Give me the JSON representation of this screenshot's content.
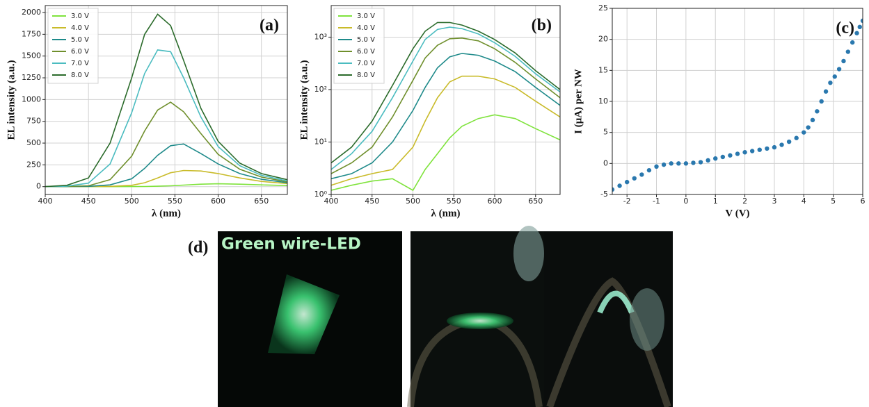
{
  "chart_data": [
    {
      "type": "line",
      "label": "(a)",
      "x_label": "λ (nm)",
      "y_label": "EL intensity (a.u.)",
      "x": [
        400,
        425,
        450,
        475,
        500,
        515,
        530,
        545,
        560,
        580,
        600,
        625,
        650,
        680
      ],
      "xlim": [
        400,
        680
      ],
      "xticks": [
        400,
        450,
        500,
        550,
        600,
        650
      ],
      "ylim": [
        -90,
        2080
      ],
      "yticks": [
        0,
        250,
        500,
        750,
        1000,
        1250,
        1500,
        1750,
        2000
      ],
      "grid": true,
      "legend": "upper left",
      "series": [
        {
          "name": "3.0 V",
          "color": "#7fe33c",
          "values": [
            0,
            0,
            0,
            0,
            1,
            2,
            5,
            10,
            18,
            28,
            33,
            28,
            20,
            12
          ]
        },
        {
          "name": "4.0 V",
          "color": "#c9bb2a",
          "values": [
            0,
            0,
            1,
            3,
            15,
            45,
            100,
            160,
            185,
            180,
            150,
            100,
            60,
            35
          ]
        },
        {
          "name": "5.0 V",
          "color": "#1e8a8a",
          "values": [
            0,
            1,
            3,
            20,
            90,
            210,
            360,
            470,
            490,
            380,
            260,
            150,
            85,
            45
          ]
        },
        {
          "name": "6.0 V",
          "color": "#6f8f2c",
          "values": [
            0,
            2,
            10,
            80,
            350,
            640,
            880,
            970,
            860,
            610,
            370,
            200,
            110,
            55
          ]
        },
        {
          "name": "7.0 V",
          "color": "#4bbcc0",
          "values": [
            0,
            5,
            40,
            260,
            850,
            1300,
            1570,
            1550,
            1250,
            800,
            460,
            240,
            130,
            65
          ]
        },
        {
          "name": "8.0 V",
          "color": "#2b6b2b",
          "values": [
            0,
            15,
            100,
            500,
            1250,
            1750,
            1980,
            1850,
            1450,
            900,
            520,
            270,
            150,
            80
          ]
        }
      ]
    },
    {
      "type": "line",
      "label": "(b)",
      "x_label": "λ (nm)",
      "y_label": "EL intensity (a.u.)",
      "x": [
        400,
        425,
        450,
        475,
        500,
        515,
        530,
        545,
        560,
        580,
        600,
        625,
        650,
        680
      ],
      "xlim": [
        400,
        680
      ],
      "xticks": [
        400,
        450,
        500,
        550,
        600,
        650
      ],
      "ylim": [
        1,
        4000
      ],
      "log_y": true,
      "yticks": [
        {
          "value": 1,
          "label": "10⁰"
        },
        {
          "value": 10,
          "label": "10¹"
        },
        {
          "value": 100,
          "label": "10²"
        },
        {
          "value": 1000,
          "label": "10³"
        }
      ],
      "grid": true,
      "legend": "upper left",
      "series": [
        {
          "name": "3.0 V",
          "color": "#7fe33c",
          "values": [
            1.2,
            1.5,
            1.8,
            2,
            1.2,
            3,
            6,
            12,
            20,
            28,
            33,
            28,
            18,
            11
          ]
        },
        {
          "name": "4.0 V",
          "color": "#c9bb2a",
          "values": [
            1.5,
            2,
            2.5,
            3,
            8,
            25,
            70,
            140,
            180,
            180,
            160,
            110,
            60,
            30
          ]
        },
        {
          "name": "5.0 V",
          "color": "#1e8a8a",
          "values": [
            2,
            2.5,
            4,
            10,
            40,
            110,
            260,
            420,
            490,
            450,
            350,
            220,
            110,
            50
          ]
        },
        {
          "name": "6.0 V",
          "color": "#6f8f2c",
          "values": [
            2.5,
            4,
            8,
            30,
            150,
            400,
            700,
            930,
            960,
            850,
            600,
            330,
            160,
            70
          ]
        },
        {
          "name": "7.0 V",
          "color": "#4bbcc0",
          "values": [
            3,
            6,
            16,
            70,
            350,
            900,
            1400,
            1550,
            1450,
            1150,
            780,
            430,
            200,
            90
          ]
        },
        {
          "name": "8.0 V",
          "color": "#2b6b2b",
          "values": [
            4,
            8,
            25,
            120,
            600,
            1300,
            1900,
            1900,
            1700,
            1300,
            900,
            500,
            230,
            100
          ]
        }
      ]
    },
    {
      "type": "scatter",
      "label": "(c)",
      "x_label": "V (V)",
      "y_label": "I (μA) per NW",
      "x": [
        -2.5,
        -2.25,
        -2,
        -1.75,
        -1.5,
        -1.25,
        -1,
        -0.75,
        -0.5,
        -0.25,
        0,
        0.25,
        0.5,
        0.75,
        1,
        1.25,
        1.5,
        1.75,
        2,
        2.25,
        2.5,
        2.75,
        3,
        3.25,
        3.5,
        3.75,
        4,
        4.15,
        4.3,
        4.45,
        4.6,
        4.75,
        4.9,
        5.05,
        5.2,
        5.35,
        5.5,
        5.65,
        5.8,
        5.9,
        6
      ],
      "values": [
        -4.2,
        -3.6,
        -3,
        -2.4,
        -1.8,
        -1.1,
        -0.5,
        -0.2,
        0,
        0,
        0,
        0.1,
        0.2,
        0.5,
        0.8,
        1.05,
        1.3,
        1.55,
        1.8,
        2,
        2.2,
        2.4,
        2.6,
        3,
        3.5,
        4.1,
        5,
        5.8,
        7,
        8.4,
        10,
        11.6,
        13,
        14,
        15.2,
        16.5,
        18,
        19.5,
        21,
        22,
        23
      ],
      "xlim": [
        -2.5,
        6
      ],
      "xticks": [
        -2,
        -1,
        0,
        1,
        2,
        3,
        4,
        5,
        6
      ],
      "ylim": [
        -5,
        25
      ],
      "yticks": [
        -5,
        0,
        5,
        10,
        15,
        20,
        25
      ],
      "grid": true,
      "color": "#2a78ae"
    }
  ],
  "panel_d": {
    "label": "(d)",
    "caption": "Green wire-LED"
  }
}
